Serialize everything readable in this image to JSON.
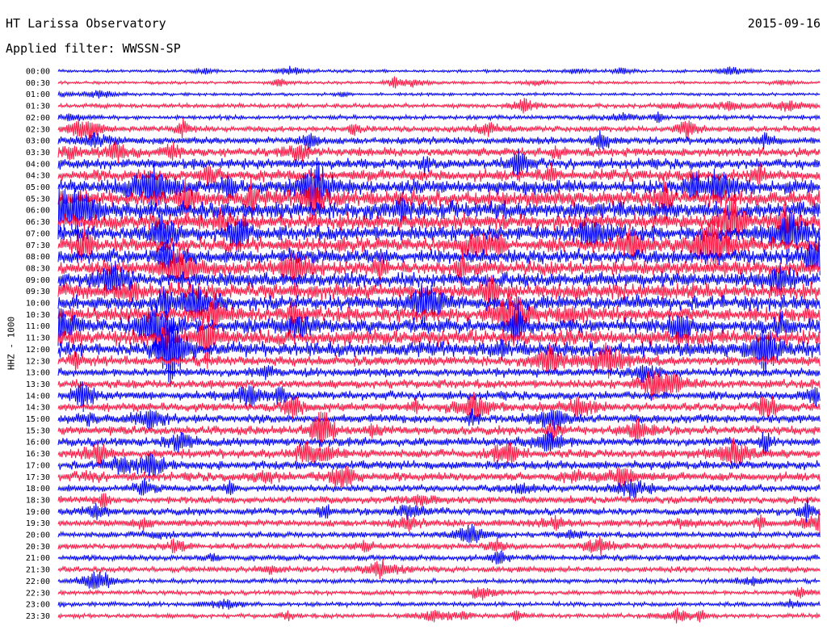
{
  "header": {
    "station": "HT Larissa Observatory",
    "date": "2015-09-16",
    "filter": "Applied filter: WWSSN-SP"
  },
  "chart_data": {
    "type": "line",
    "title": "HT Larissa Observatory",
    "ylabel": "HHZ - 1000",
    "row_labels": [
      "00:00",
      "00:30",
      "01:00",
      "01:30",
      "02:00",
      "02:30",
      "03:00",
      "03:30",
      "04:00",
      "04:30",
      "05:00",
      "05:30",
      "06:00",
      "06:30",
      "07:00",
      "07:30",
      "08:00",
      "08:30",
      "09:00",
      "09:30",
      "10:00",
      "10:30",
      "11:00",
      "11:30",
      "12:00",
      "12:30",
      "13:00",
      "13:30",
      "14:00",
      "14:30",
      "15:00",
      "15:30",
      "16:00",
      "16:30",
      "17:00",
      "17:30",
      "18:00",
      "18:30",
      "19:00",
      "19:30",
      "20:00",
      "20:30",
      "21:00",
      "21:30",
      "22:00",
      "22:30",
      "23:00",
      "23:30"
    ],
    "noise_level": [
      2,
      2,
      2,
      3,
      3,
      4,
      5,
      6,
      7,
      8,
      10,
      11,
      12,
      11,
      10,
      10,
      10,
      10,
      10,
      11,
      10,
      10,
      10,
      11,
      10,
      7,
      6,
      6,
      6,
      6,
      6,
      6,
      6,
      6,
      6,
      6,
      5,
      5,
      5,
      5,
      4,
      4,
      4,
      4,
      3,
      3,
      3,
      3
    ],
    "series_colors": [
      "#0000ff",
      "#ff1744"
    ]
  }
}
